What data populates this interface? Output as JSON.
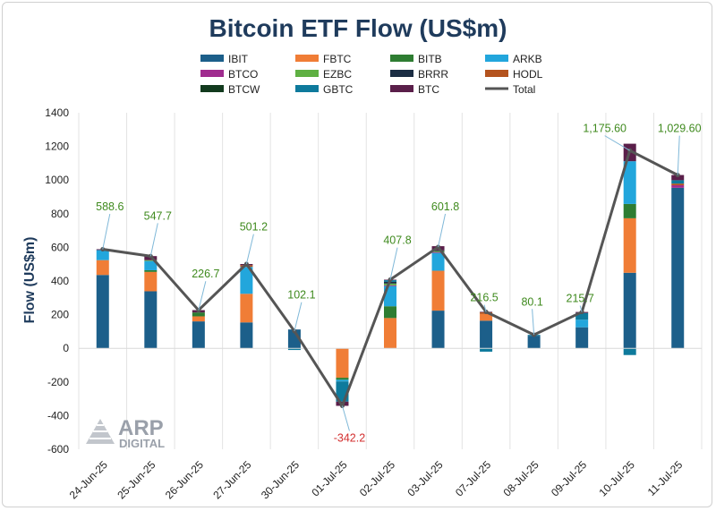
{
  "chart_data": {
    "type": "bar",
    "stacked": true,
    "title": "Bitcoin ETF Flow (US$m)",
    "xlabel": "",
    "ylabel": "Flow (US$m)",
    "ylim": [
      -600,
      1400
    ],
    "yticks": [
      -600,
      -400,
      -200,
      0,
      200,
      400,
      600,
      800,
      1000,
      1200,
      1400
    ],
    "grid": "vertical",
    "legend_position": "top",
    "categories": [
      "24-Jun-25",
      "25-Jun-25",
      "26-Jun-25",
      "27-Jun-25",
      "30-Jun-25",
      "01-Jul-25",
      "02-Jul-25",
      "03-Jul-25",
      "07-Jul-25",
      "08-Jul-25",
      "09-Jul-25",
      "10-Jul-25",
      "11-Jul-25"
    ],
    "series": [
      {
        "name": "IBIT",
        "color": "#1c5f8a",
        "values": [
          436,
          339,
          160,
          154,
          112,
          -2,
          0,
          224,
          164,
          75,
          125,
          449,
          954
        ]
      },
      {
        "name": "FBTC",
        "color": "#f07d36",
        "values": [
          88,
          115,
          30,
          170,
          0,
          -173,
          180,
          237,
          40,
          0,
          0,
          324,
          0
        ]
      },
      {
        "name": "BITB",
        "color": "#2e7d32",
        "values": [
          0,
          10,
          23,
          0,
          0,
          -12,
          70,
          0,
          0,
          0,
          0,
          85,
          0
        ]
      },
      {
        "name": "ARKB",
        "color": "#22a6dc",
        "values": [
          60,
          55,
          0,
          160,
          0,
          -10,
          120,
          106,
          0,
          0,
          45,
          254,
          0
        ]
      },
      {
        "name": "BTCO",
        "color": "#a02c8f",
        "values": [
          0,
          0,
          0,
          0,
          0,
          0,
          5,
          5,
          0,
          0,
          0,
          0,
          15
        ]
      },
      {
        "name": "EZBC",
        "color": "#5fb043",
        "values": [
          0,
          5,
          0,
          0,
          0,
          0,
          10,
          5,
          0,
          0,
          0,
          0,
          0
        ]
      },
      {
        "name": "BRRR",
        "color": "#1c2e44",
        "values": [
          0,
          0,
          0,
          0,
          0,
          0,
          10,
          0,
          0,
          0,
          0,
          0,
          0
        ]
      },
      {
        "name": "HODL",
        "color": "#b4531e",
        "values": [
          0,
          0,
          0,
          10,
          0,
          0,
          0,
          0,
          10,
          0,
          0,
          0,
          10
        ]
      },
      {
        "name": "BTCW",
        "color": "#123a1e",
        "values": [
          0,
          0,
          0,
          0,
          0,
          0,
          0,
          5,
          0,
          0,
          0,
          0,
          0
        ]
      },
      {
        "name": "GBTC",
        "color": "#0e7a9c",
        "values": [
          0,
          0,
          0,
          0,
          -10,
          -120,
          10,
          0,
          -20,
          5,
          40,
          -40,
          20
        ]
      },
      {
        "name": "BTC",
        "color": "#5a1f4a",
        "values": [
          5,
          24,
          14,
          7,
          0,
          -25,
          3,
          25,
          3,
          0,
          6,
          104,
          31
        ]
      }
    ],
    "total": {
      "name": "Total",
      "color": "#555555",
      "values": [
        588.6,
        547.7,
        226.7,
        501.2,
        102.1,
        -342.2,
        407.8,
        601.8,
        216.5,
        80.1,
        215.7,
        1175.6,
        1029.6
      ],
      "labels": [
        "588.6",
        "547.7",
        "226.7",
        "501.2",
        "102.1",
        "-342.2",
        "407.8",
        "601.8",
        "216.5",
        "80.1",
        "215.7",
        "1,175.60",
        "1,029.60"
      ],
      "label_values": [
        820,
        765,
        420,
        700,
        295,
        -555,
        620,
        820,
        280,
        255,
        275,
        1285,
        1285
      ],
      "positive_label_color": "#3f8a1e",
      "negative_label_color": "#d32f2f"
    }
  },
  "logo": {
    "line1": "ARP",
    "line2": "DIGITAL"
  }
}
